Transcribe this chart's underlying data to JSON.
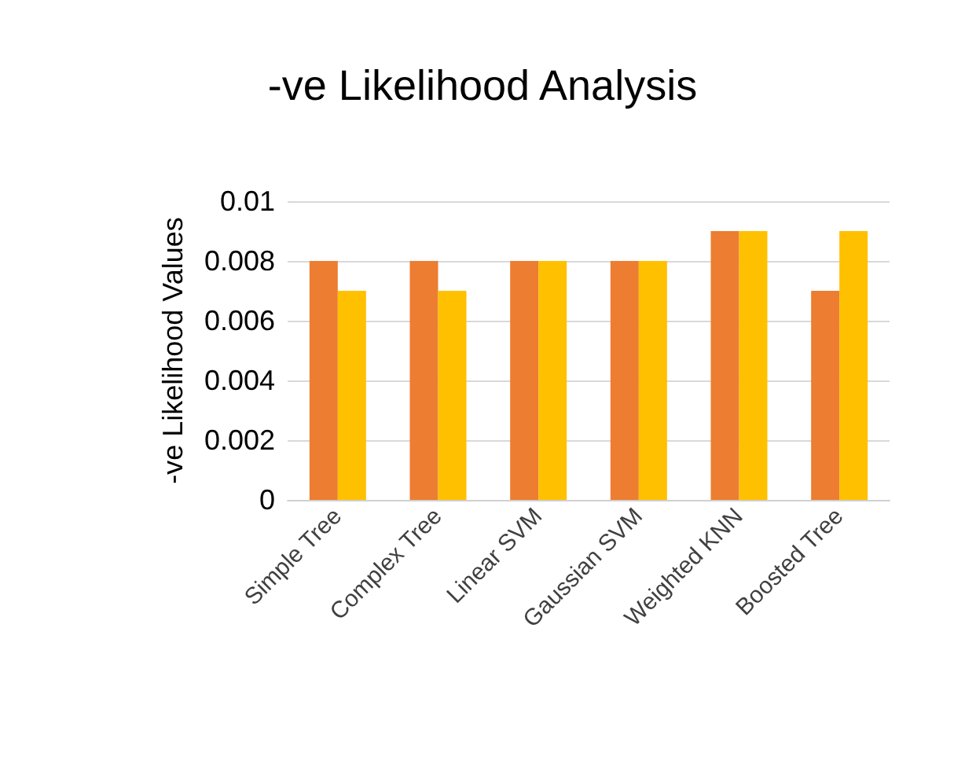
{
  "chart_data": {
    "type": "bar",
    "title": "-ve Likelihood Analysis",
    "ylabel": "-ve Likelihood Values",
    "categories": [
      "Simple Tree",
      "Complex Tree",
      "Linear SVM",
      "Gaussian SVM",
      "Weighted KNN",
      "Boosted Tree"
    ],
    "series": [
      {
        "color": "#ed7d31",
        "values": [
          0.008,
          0.008,
          0.008,
          0.008,
          0.009,
          0.007
        ]
      },
      {
        "color": "#ffc000",
        "values": [
          0.007,
          0.007,
          0.008,
          0.008,
          0.009,
          0.009
        ]
      }
    ],
    "ylim": [
      0,
      0.01
    ],
    "yticks": [
      0,
      0.002,
      0.004,
      0.006,
      0.008,
      0.01
    ],
    "grid": "y"
  }
}
